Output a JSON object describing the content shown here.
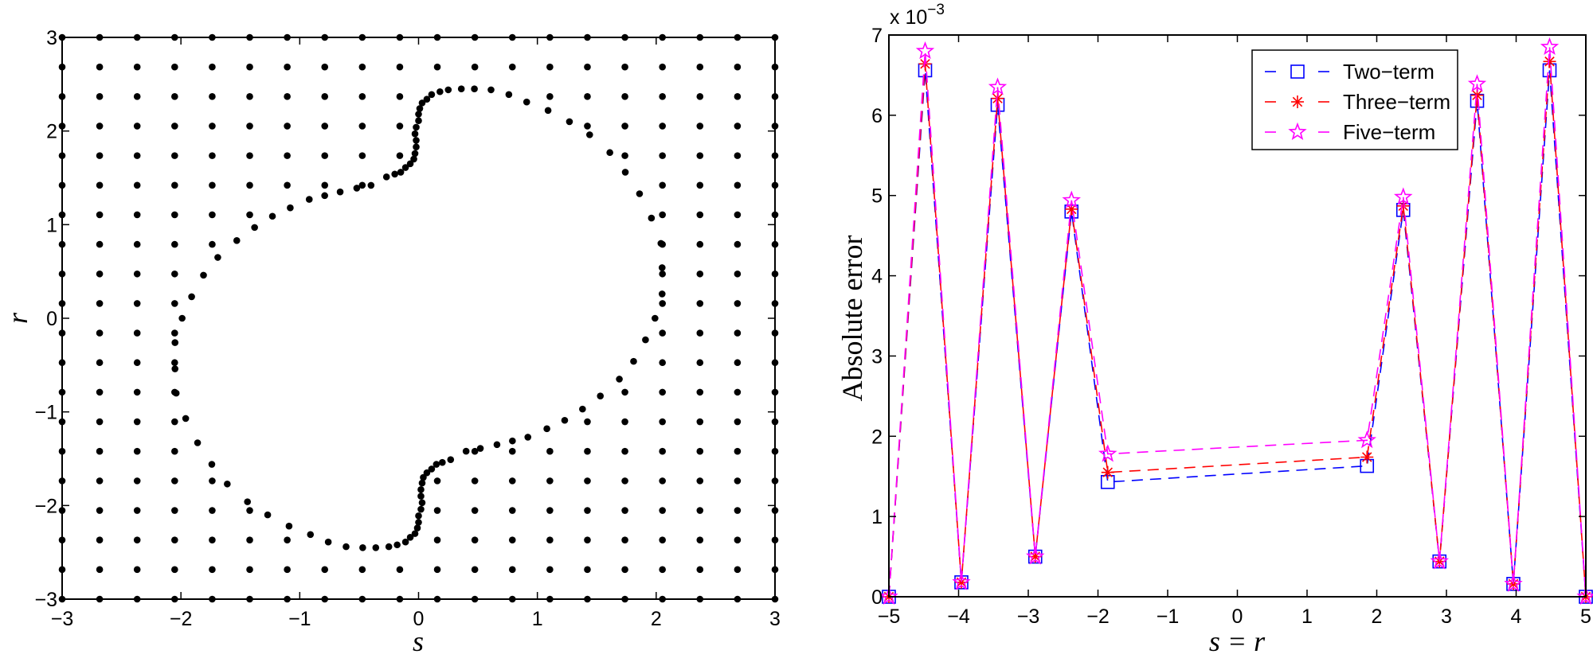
{
  "chart_data": [
    {
      "type": "scatter",
      "title": "",
      "xlabel": "s",
      "ylabel": "r",
      "xlim": [
        -3,
        3
      ],
      "ylim": [
        -3,
        3
      ],
      "xticks": [
        -3,
        -2,
        -1,
        0,
        1,
        2,
        3
      ],
      "yticks": [
        -3,
        -2,
        -1,
        0,
        1,
        2,
        3
      ],
      "grid": false,
      "marker": "filled-circle",
      "marker_color": "#000000",
      "series": [
        {
          "name": "uniform-grid-points",
          "description": "20x20 uniform grid on [-3,3]x[-3,3], points inside the closed curve removed",
          "grid_n": 20
        },
        {
          "name": "boundary-points",
          "description": "points on closed curve (180-degree rotationally symmetric)",
          "points_upper_half": [
            [
              -0.27,
              1.51
            ],
            [
              -0.2,
              1.54
            ],
            [
              -0.15,
              1.56
            ],
            [
              -0.11,
              1.61
            ],
            [
              -0.07,
              1.65
            ],
            [
              -0.04,
              1.7
            ],
            [
              -0.03,
              1.76
            ],
            [
              -0.02,
              1.83
            ],
            [
              -0.02,
              1.9
            ],
            [
              -0.03,
              1.97
            ],
            [
              -0.02,
              2.04
            ],
            [
              0.0,
              2.11
            ],
            [
              0.0,
              2.18
            ],
            [
              0.01,
              2.24
            ],
            [
              0.03,
              2.3
            ],
            [
              0.07,
              2.34
            ],
            [
              0.11,
              2.39
            ],
            [
              0.18,
              2.42
            ],
            [
              0.25,
              2.44
            ],
            [
              0.36,
              2.45
            ],
            [
              0.47,
              2.45
            ],
            [
              0.61,
              2.44
            ],
            [
              0.76,
              2.39
            ],
            [
              0.91,
              2.31
            ],
            [
              1.09,
              2.22
            ],
            [
              1.27,
              2.1
            ],
            [
              1.44,
              1.96
            ],
            [
              1.61,
              1.77
            ],
            [
              1.74,
              1.56
            ],
            [
              1.86,
              1.33
            ],
            [
              1.96,
              1.07
            ],
            [
              2.04,
              0.8
            ],
            [
              2.05,
              0.54
            ],
            [
              2.05,
              0.26
            ],
            [
              1.99,
              0.0
            ],
            [
              1.91,
              -0.23
            ],
            [
              1.81,
              -0.46
            ],
            [
              1.69,
              -0.65
            ],
            [
              1.53,
              -0.83
            ],
            [
              1.38,
              -0.97
            ],
            [
              1.23,
              -1.09
            ],
            [
              1.08,
              -1.18
            ],
            [
              0.92,
              -1.27
            ],
            [
              0.79,
              -1.31
            ],
            [
              0.66,
              -1.35
            ],
            [
              0.52,
              -1.39
            ],
            [
              0.4,
              -1.42
            ]
          ]
        }
      ]
    },
    {
      "type": "line",
      "title": "",
      "xlabel": "s = r",
      "ylabel": "Absolute error",
      "y_multiplier": "x 10^-3",
      "xlim": [
        -5,
        5
      ],
      "ylim": [
        0,
        7
      ],
      "xticks": [
        -5,
        -4,
        -3,
        -2,
        -1,
        0,
        1,
        2,
        3,
        4,
        5
      ],
      "yticks": [
        0,
        1,
        2,
        3,
        4,
        5,
        6,
        7
      ],
      "grid": false,
      "legend_position": "upper right",
      "x": [
        -5.0,
        -4.48,
        -3.96,
        -3.44,
        -2.9,
        -2.38,
        -1.86,
        1.86,
        2.38,
        2.9,
        3.44,
        3.96,
        4.48,
        5.0
      ],
      "series": [
        {
          "name": "Two-term",
          "color": "#0000ff",
          "marker": "square",
          "linestyle": "dashed",
          "values": [
            0.0,
            6.56,
            0.18,
            6.13,
            0.5,
            4.8,
            1.43,
            1.63,
            4.82,
            0.44,
            6.18,
            0.16,
            6.56,
            0.0
          ]
        },
        {
          "name": "Three-term",
          "color": "#ff0000",
          "marker": "asterisk",
          "linestyle": "dashed",
          "values": [
            0.0,
            6.64,
            0.18,
            6.21,
            0.5,
            4.83,
            1.55,
            1.74,
            4.87,
            0.44,
            6.25,
            0.16,
            6.67,
            0.0
          ]
        },
        {
          "name": "Five-term",
          "color": "#ff00ff",
          "marker": "pentagram",
          "linestyle": "dashed",
          "values": [
            0.0,
            6.8,
            0.18,
            6.35,
            0.5,
            4.94,
            1.78,
            1.95,
            4.98,
            0.44,
            6.39,
            0.16,
            6.85,
            0.0
          ]
        }
      ]
    }
  ],
  "left_plot": {
    "xlabel": "s",
    "ylabel": "r",
    "xtick_labels": [
      "−3",
      "−2",
      "−1",
      "0",
      "1",
      "2",
      "3"
    ],
    "ytick_labels": [
      "−3",
      "−2",
      "−1",
      "0",
      "1",
      "2",
      "3"
    ]
  },
  "right_plot": {
    "xlabel": "s = r",
    "ylabel": "Absolute error",
    "multiplier_base": "x 10",
    "multiplier_exp": "−3",
    "xtick_labels": [
      "−5",
      "−4",
      "−3",
      "−2",
      "−1",
      "0",
      "1",
      "2",
      "3",
      "4",
      "5"
    ],
    "ytick_labels": [
      "0",
      "1",
      "2",
      "3",
      "4",
      "5",
      "6",
      "7"
    ],
    "legend": [
      {
        "label": "Two−term",
        "color": "#0000ff",
        "marker": "square"
      },
      {
        "label": "Three−term",
        "color": "#ff0000",
        "marker": "asterisk"
      },
      {
        "label": "Five−term",
        "color": "#ff00ff",
        "marker": "pentagram"
      }
    ]
  }
}
